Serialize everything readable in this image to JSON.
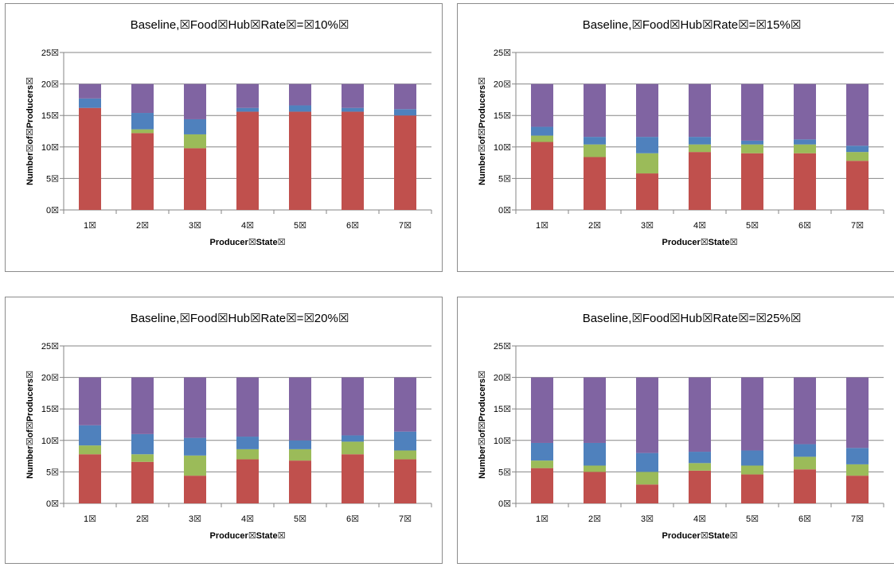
{
  "colors": {
    "seg1": "#c0504d",
    "seg2": "#9bbb59",
    "seg3": "#4f81bd",
    "seg4": "#8064a2",
    "grid": "#868686",
    "axis": "#868686"
  },
  "chart_data": [
    {
      "type": "bar",
      "stacked": true,
      "title": "Baseline,☒Food☒Hub☒Rate☒=☒10%☒",
      "xlabel": "Producer☒State☒",
      "ylabel": "Number☒of☒Producers☒",
      "categories": [
        "1☒",
        "2☒",
        "3☒",
        "4☒",
        "5☒",
        "6☒",
        "7☒"
      ],
      "yticks": [
        "0☒",
        "5☒",
        "10☒",
        "15☒",
        "20☒",
        "25☒"
      ],
      "ylim": [
        0,
        25
      ],
      "grid": true,
      "series": [
        {
          "values": [
            16.2,
            12.2,
            9.8,
            15.6,
            15.6,
            15.6,
            15.0
          ]
        },
        {
          "values": [
            0.0,
            0.6,
            2.2,
            0.0,
            0.0,
            0.0,
            0.0
          ]
        },
        {
          "values": [
            1.5,
            2.6,
            2.4,
            0.6,
            1.0,
            0.6,
            1.0
          ]
        },
        {
          "values": [
            2.3,
            4.6,
            5.6,
            3.8,
            3.4,
            3.8,
            4.0
          ]
        }
      ]
    },
    {
      "type": "bar",
      "stacked": true,
      "title": "Baseline,☒Food☒Hub☒Rate☒=☒15%☒",
      "xlabel": "Producer☒State☒",
      "ylabel": "Number☒of☒Producers☒",
      "categories": [
        "1☒",
        "2☒",
        "3☒",
        "4☒",
        "5☒",
        "6☒",
        "7☒"
      ],
      "yticks": [
        "0☒",
        "5☒",
        "10☒",
        "15☒",
        "20☒",
        "25☒"
      ],
      "ylim": [
        0,
        25
      ],
      "grid": true,
      "series": [
        {
          "values": [
            10.8,
            8.4,
            5.8,
            9.2,
            9.0,
            9.0,
            7.8
          ]
        },
        {
          "values": [
            1.0,
            2.0,
            3.2,
            1.2,
            1.4,
            1.4,
            1.4
          ]
        },
        {
          "values": [
            1.4,
            1.2,
            2.6,
            1.2,
            0.6,
            0.8,
            1.0
          ]
        },
        {
          "values": [
            6.8,
            8.4,
            8.4,
            8.4,
            9.0,
            8.8,
            9.8
          ]
        }
      ]
    },
    {
      "type": "bar",
      "stacked": true,
      "title": "Baseline,☒Food☒Hub☒Rate☒=☒20%☒",
      "xlabel": "Producer☒State☒",
      "ylabel": "Number☒of☒Producers☒",
      "categories": [
        "1☒",
        "2☒",
        "3☒",
        "4☒",
        "5☒",
        "6☒",
        "7☒"
      ],
      "yticks": [
        "0☒",
        "5☒",
        "10☒",
        "15☒",
        "20☒",
        "25☒"
      ],
      "ylim": [
        0,
        25
      ],
      "grid": true,
      "series": [
        {
          "values": [
            7.8,
            6.6,
            4.4,
            7.0,
            6.8,
            7.8,
            7.0
          ]
        },
        {
          "values": [
            1.4,
            1.2,
            3.2,
            1.6,
            1.8,
            2.0,
            1.4
          ]
        },
        {
          "values": [
            3.2,
            3.2,
            2.8,
            2.0,
            1.4,
            1.0,
            3.0
          ]
        },
        {
          "values": [
            7.6,
            9.0,
            9.6,
            9.4,
            10.0,
            9.2,
            8.6
          ]
        }
      ]
    },
    {
      "type": "bar",
      "stacked": true,
      "title": "Baseline,☒Food☒Hub☒Rate☒=☒25%☒",
      "xlabel": "Producer☒State☒",
      "ylabel": "Number☒of☒Producers☒",
      "categories": [
        "1☒",
        "2☒",
        "3☒",
        "4☒",
        "5☒",
        "6☒",
        "7☒"
      ],
      "yticks": [
        "0☒",
        "5☒",
        "10☒",
        "15☒",
        "20☒",
        "25☒"
      ],
      "ylim": [
        0,
        25
      ],
      "grid": true,
      "series": [
        {
          "values": [
            5.6,
            5.0,
            3.0,
            5.2,
            4.6,
            5.4,
            4.4
          ]
        },
        {
          "values": [
            1.2,
            1.0,
            2.0,
            1.2,
            1.4,
            2.0,
            1.8
          ]
        },
        {
          "values": [
            2.8,
            3.6,
            3.0,
            1.8,
            2.4,
            2.0,
            2.6
          ]
        },
        {
          "values": [
            10.4,
            10.4,
            12.0,
            11.8,
            11.6,
            10.6,
            11.2
          ]
        }
      ]
    }
  ]
}
